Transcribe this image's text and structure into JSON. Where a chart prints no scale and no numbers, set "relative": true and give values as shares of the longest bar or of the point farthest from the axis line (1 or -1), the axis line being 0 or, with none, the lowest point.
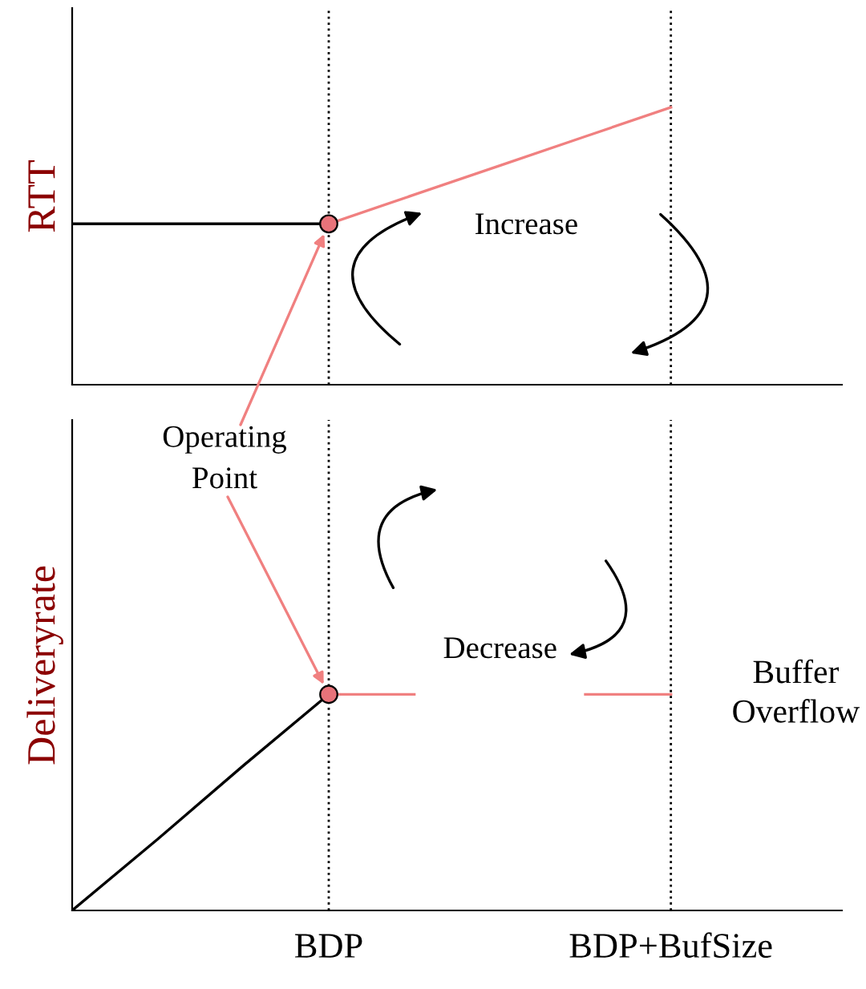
{
  "chart_data": [
    {
      "type": "line",
      "ylabel": "RTT",
      "relative": true,
      "tick_labels": false,
      "grid": false,
      "legend": false,
      "categories": [
        null,
        null,
        null,
        "BDP",
        null,
        null,
        null,
        "BDP+BufSize",
        null,
        null
      ],
      "series": [
        {
          "color": "#000000",
          "values": [
            0.58,
            0.58,
            0.58,
            0.58,
            null,
            null,
            null,
            null,
            null,
            null
          ]
        },
        {
          "color": "#f08080",
          "values": [
            null,
            null,
            null,
            0.58,
            0.685,
            0.79,
            0.895,
            1,
            null,
            null
          ]
        },
        {
          "type": "scatter",
          "color": "#e8737a",
          "marker": "circle",
          "values": [
            null,
            null,
            null,
            0.58,
            null,
            null,
            null,
            null,
            null,
            null
          ]
        }
      ],
      "ref_lines": [
        {
          "axis": "x",
          "value": "BDP",
          "line_style": "dotted",
          "color": "#000000"
        },
        {
          "axis": "x",
          "value": "BDP+BufSize",
          "line_style": "dotted",
          "color": "#000000"
        }
      ],
      "annotations": [
        {
          "text": "Operating Point",
          "x": "BDP",
          "y": 0.58
        },
        "Increase"
      ]
    },
    {
      "type": "line",
      "ylabel": "Deliveryrate",
      "relative": true,
      "grid": false,
      "legend": false,
      "categories": [
        null,
        null,
        null,
        "BDP",
        null,
        null,
        null,
        "BDP+BufSize",
        null,
        null
      ],
      "series": [
        {
          "color": "#000000",
          "values": [
            0,
            0.33,
            0.67,
            1,
            null,
            null,
            null,
            null,
            null,
            null
          ]
        },
        {
          "color": "#f08080",
          "values": [
            null,
            null,
            null,
            1,
            1,
            null,
            1,
            1,
            null,
            null
          ]
        },
        {
          "type": "scatter",
          "color": "#e8737a",
          "marker": "circle",
          "values": [
            null,
            null,
            null,
            1,
            null,
            null,
            null,
            null,
            null,
            null
          ]
        }
      ],
      "ref_lines": [
        {
          "axis": "x",
          "value": "BDP",
          "line_style": "dotted",
          "color": "#000000"
        },
        {
          "axis": "x",
          "value": "BDP+BufSize",
          "line_style": "dotted",
          "color": "#000000"
        }
      ],
      "annotations": [
        "Decrease",
        "Buffer Overflow"
      ]
    }
  ]
}
